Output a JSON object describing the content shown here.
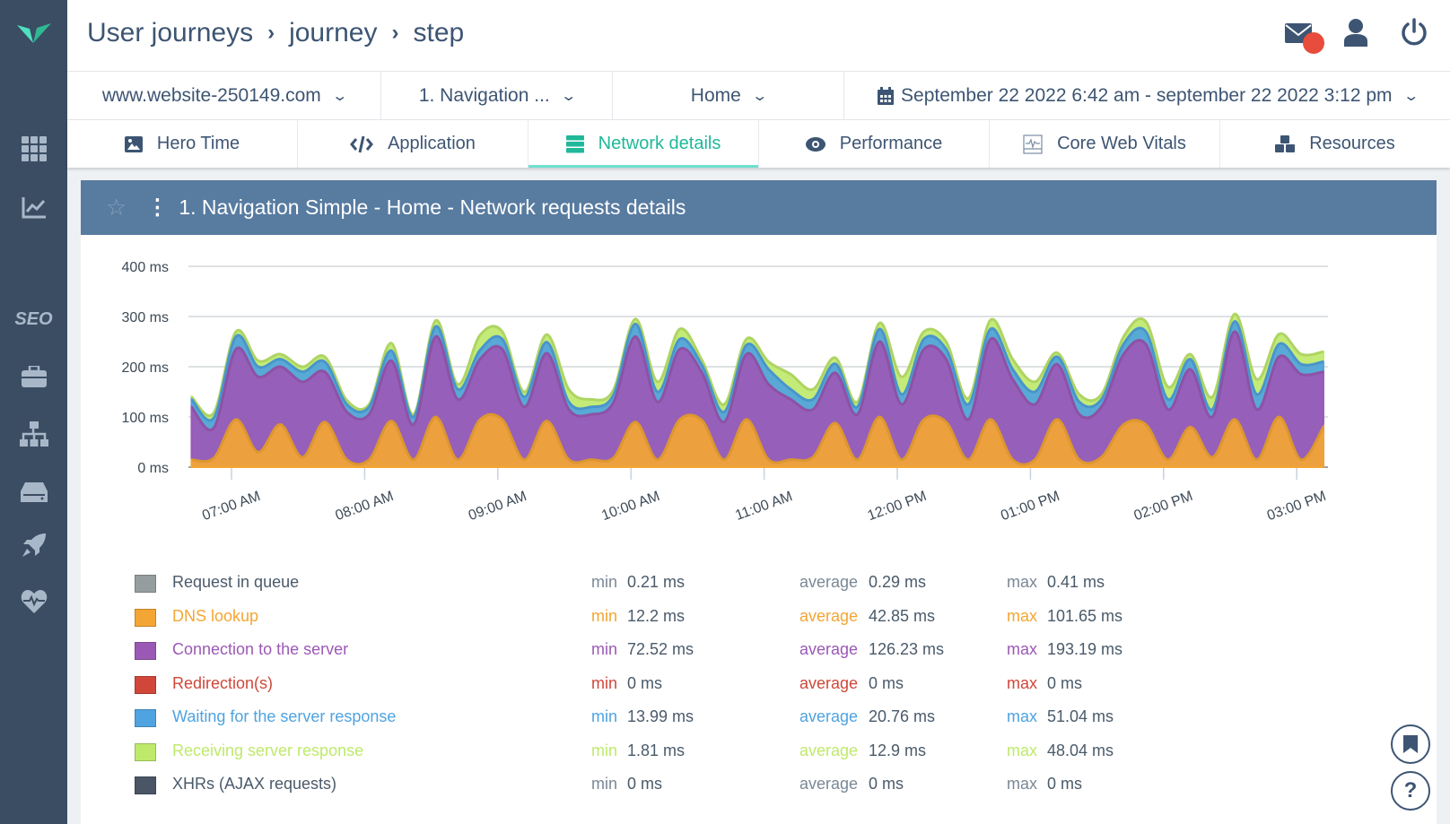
{
  "colors": {
    "accent": "#1fb89a",
    "panel_header": "#587ba0",
    "sidebar": "#3a4d63",
    "queue": "#959e9f",
    "dns": "#f3a633",
    "connection": "#9b59b6",
    "redirection": "#d0473a",
    "waiting": "#4fa3e0",
    "receiving": "#bfe96b",
    "xhr": "#4a5566"
  },
  "sidebar": {
    "items": [
      {
        "icon": "logo-icon"
      },
      {
        "icon": "grid-icon"
      },
      {
        "icon": "chart-icon"
      },
      {
        "label": "SEO"
      },
      {
        "icon": "briefcase-icon"
      },
      {
        "icon": "sitemap-icon"
      },
      {
        "icon": "drive-icon"
      },
      {
        "icon": "rocket-icon"
      },
      {
        "icon": "heartbeat-icon"
      }
    ]
  },
  "header": {
    "breadcrumb": [
      "User journeys",
      "journey",
      "step"
    ],
    "separator": "›",
    "icons": [
      "mail-icon",
      "user-icon",
      "power-icon"
    ]
  },
  "filters": {
    "site": "www.website-250149.com",
    "journey": "1. Navigation ...",
    "step": "Home",
    "date_range": "September 22 2022 6:42 am - september 22 2022 3:12 pm"
  },
  "tabs": [
    {
      "label": "Hero Time",
      "icon": "image-icon"
    },
    {
      "label": "Application",
      "icon": "code-icon"
    },
    {
      "label": "Network details",
      "icon": "server-icon",
      "active": true
    },
    {
      "label": "Performance",
      "icon": "eye-icon"
    },
    {
      "label": "Core Web Vitals",
      "icon": "vitals-icon"
    },
    {
      "label": "Resources",
      "icon": "cubes-icon"
    }
  ],
  "panel": {
    "title": "1. Navigation Simple - Home - Network requests details"
  },
  "chart_data": {
    "type": "area",
    "stacked": true,
    "y_ticks": [
      "0 ms",
      "100 ms",
      "200 ms",
      "300 ms",
      "400 ms"
    ],
    "ylim": [
      0,
      400
    ],
    "x_ticks": [
      "07:00 AM",
      "08:00 AM",
      "09:00 AM",
      "10:00 AM",
      "11:00 AM",
      "12:00 PM",
      "01:00 PM",
      "02:00 PM",
      "03:00 PM"
    ],
    "x_start": "06:42",
    "x_step_minutes": 10,
    "series": [
      {
        "name": "DNS lookup",
        "key": "dns",
        "values": [
          15,
          18,
          95,
          30,
          85,
          20,
          90,
          15,
          15,
          92,
          15,
          100,
          15,
          95,
          95,
          15,
          92,
          15,
          15,
          18,
          90,
          15,
          95,
          93,
          15,
          95,
          15,
          15,
          20,
          88,
          15,
          100,
          15,
          95,
          90,
          15,
          95,
          15,
          15,
          95,
          15,
          20,
          85,
          85,
          15,
          80,
          20,
          95,
          15,
          100,
          15,
          80
        ]
      },
      {
        "name": "Connection to the server",
        "key": "connection",
        "values": [
          105,
          60,
          140,
          150,
          115,
          150,
          100,
          95,
          90,
          120,
          70,
          160,
          120,
          120,
          140,
          105,
          135,
          100,
          90,
          110,
          170,
          115,
          140,
          95,
          75,
          130,
          150,
          120,
          95,
          100,
          90,
          150,
          110,
          140,
          125,
          80,
          160,
          160,
          110,
          110,
          90,
          100,
          140,
          160,
          100,
          115,
          80,
          175,
          100,
          120,
          170,
          110
        ]
      },
      {
        "name": "Waiting for the server response",
        "key": "waiting",
        "values": [
          15,
          20,
          25,
          20,
          15,
          20,
          20,
          15,
          15,
          20,
          15,
          20,
          20,
          18,
          20,
          20,
          22,
          15,
          15,
          15,
          25,
          20,
          20,
          15,
          20,
          18,
          30,
          20,
          20,
          18,
          15,
          25,
          20,
          20,
          20,
          30,
          20,
          20,
          25,
          15,
          25,
          15,
          20,
          25,
          20,
          20,
          15,
          20,
          30,
          25,
          20,
          20
        ]
      },
      {
        "name": "Receiving server response",
        "key": "receiving",
        "values": [
          5,
          10,
          10,
          12,
          10,
          10,
          10,
          8,
          5,
          15,
          5,
          12,
          10,
          30,
          15,
          10,
          15,
          25,
          15,
          10,
          10,
          20,
          20,
          10,
          15,
          12,
          15,
          30,
          20,
          12,
          10,
          12,
          35,
          15,
          15,
          12,
          18,
          20,
          20,
          8,
          15,
          10,
          15,
          20,
          25,
          10,
          25,
          15,
          30,
          20,
          20,
          20
        ]
      }
    ],
    "grid": true
  },
  "legend": [
    {
      "name": "Request in queue",
      "key": "queue",
      "min": "0.21 ms",
      "avg": "0.29 ms",
      "max": "0.41 ms",
      "colored_text": false
    },
    {
      "name": "DNS lookup",
      "key": "dns",
      "min": "12.2 ms",
      "avg": "42.85 ms",
      "max": "101.65 ms",
      "colored_text": true
    },
    {
      "name": "Connection to the server",
      "key": "connection",
      "min": "72.52 ms",
      "avg": "126.23 ms",
      "max": "193.19 ms",
      "colored_text": true
    },
    {
      "name": "Redirection(s)",
      "key": "redirection",
      "min": "0 ms",
      "avg": "0 ms",
      "max": "0 ms",
      "colored_text": true
    },
    {
      "name": "Waiting for the server response",
      "key": "waiting",
      "min": "13.99 ms",
      "avg": "20.76 ms",
      "max": "51.04 ms",
      "colored_text": true
    },
    {
      "name": "Receiving server response",
      "key": "receiving",
      "min": "1.81 ms",
      "avg": "12.9 ms",
      "max": "48.04 ms",
      "colored_text": true
    },
    {
      "name": "XHRs (AJAX requests)",
      "key": "xhr",
      "min": "0 ms",
      "avg": "0 ms",
      "max": "0 ms",
      "colored_text": false
    }
  ],
  "legend_labels": {
    "min": "min",
    "avg": "average",
    "max": "max"
  },
  "floating": {
    "help": "?"
  }
}
